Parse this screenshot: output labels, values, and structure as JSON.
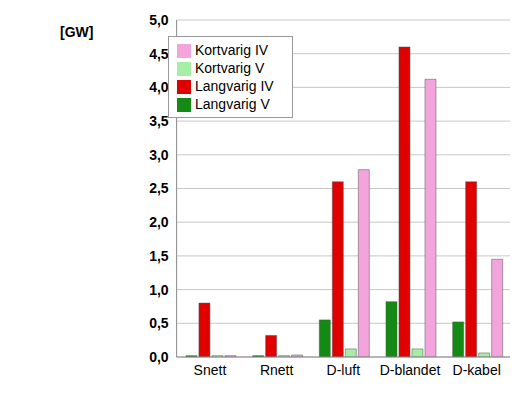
{
  "chart_data": {
    "type": "bar",
    "ylabel": "[GW]",
    "categories": [
      "Snett",
      "Rnett",
      "D-luft",
      "D-blandet",
      "D-kabel"
    ],
    "series": [
      {
        "name": "Langvarig V",
        "color": "#138a13",
        "values": [
          0.02,
          0.02,
          0.55,
          0.82,
          0.52
        ]
      },
      {
        "name": "Langvarig IV",
        "color": "#e00000",
        "values": [
          0.8,
          0.32,
          2.6,
          4.6,
          2.6
        ]
      },
      {
        "name": "Kortvarig V",
        "color": "#a6eea6",
        "values": [
          0.02,
          0.02,
          0.12,
          0.12,
          0.06
        ]
      },
      {
        "name": "Kortvarig IV",
        "color": "#f4a4dc",
        "values": [
          0.02,
          0.03,
          2.78,
          4.12,
          1.45
        ]
      }
    ],
    "ylim": [
      0,
      5
    ],
    "yticks": [
      {
        "value": 0,
        "label": "0,0"
      },
      {
        "value": 0.5,
        "label": "0,5"
      },
      {
        "value": 1,
        "label": "1,0"
      },
      {
        "value": 1.5,
        "label": "1,5"
      },
      {
        "value": 2,
        "label": "2,0"
      },
      {
        "value": 2.5,
        "label": "2,5"
      },
      {
        "value": 3,
        "label": "3,0"
      },
      {
        "value": 3.5,
        "label": "3,5"
      },
      {
        "value": 4,
        "label": "4,0"
      },
      {
        "value": 4.5,
        "label": "4,5"
      },
      {
        "value": 5,
        "label": "5,0"
      }
    ],
    "grid": true,
    "legend": "upper left"
  }
}
